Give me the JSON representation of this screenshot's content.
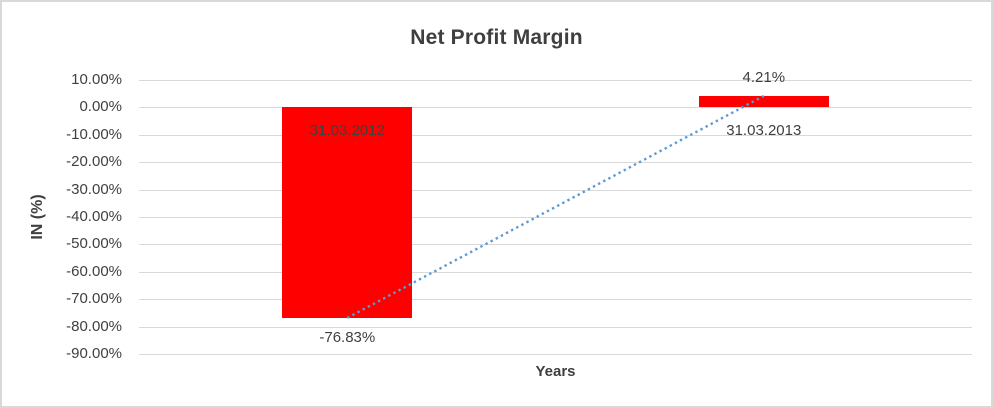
{
  "chart_data": {
    "type": "bar",
    "title": "Net Profit Margin",
    "xlabel": "Years",
    "ylabel": "IN (%)",
    "categories": [
      "31.03.2012",
      "31.03.2013"
    ],
    "values": [
      -76.83,
      4.21
    ],
    "data_labels": [
      "-76.83%",
      "4.21%"
    ],
    "y_ticks": [
      "10.00%",
      "0.00%",
      "-10.00%",
      "-20.00%",
      "-30.00%",
      "-40.00%",
      "-50.00%",
      "-60.00%",
      "-70.00%",
      "-80.00%",
      "-90.00%"
    ],
    "y_tick_values": [
      10,
      0,
      -10,
      -20,
      -30,
      -40,
      -50,
      -60,
      -70,
      -80,
      -90
    ],
    "ylim": [
      -90,
      10
    ],
    "grid": true,
    "legend": "none",
    "bar_color": "#ff0000",
    "gridline_color": "#d9d9d9",
    "border_color": "#d9d9d9",
    "text_color": "#404040",
    "trendline": {
      "type": "linear",
      "style": "dotted",
      "color": "#5b9bd5",
      "from_value": -76.83,
      "to_value": 4.21
    }
  }
}
